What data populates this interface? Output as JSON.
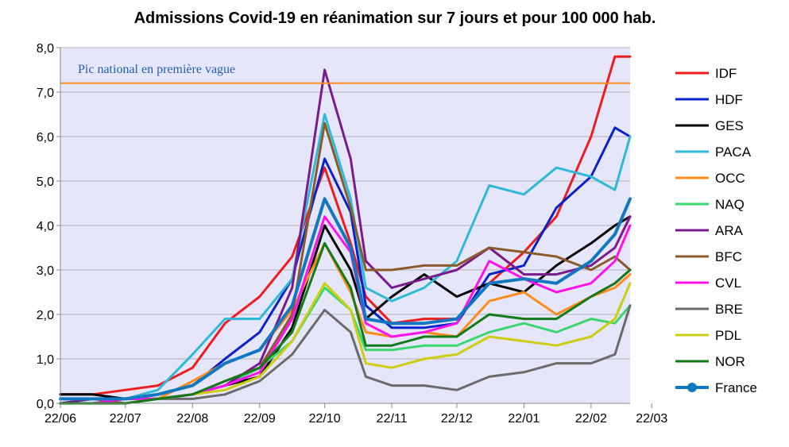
{
  "chart_data": {
    "type": "line",
    "title": "Admissions Covid-19 en réanimation sur 7 jours et pour 100 000 hab.",
    "xlabel": "",
    "ylabel": "",
    "ylim": [
      0,
      8
    ],
    "yticks": [
      "0,0",
      "1,0",
      "2,0",
      "3,0",
      "4,0",
      "5,0",
      "6,0",
      "7,0",
      "8,0"
    ],
    "xlim": [
      "2020-06-22",
      "2021-03-12"
    ],
    "xticks": [
      "22/06",
      "22/07",
      "22/08",
      "22/09",
      "22/10",
      "22/11",
      "22/12",
      "22/01",
      "22/02",
      "22/03"
    ],
    "grid": "horizontal",
    "legend_position": "right",
    "plot_background": "#e6e6fa",
    "reference_line": {
      "label": "Pic national en première vague",
      "value": 7.2,
      "color": "#ff8c1a",
      "label_color": "#2a5db0"
    },
    "x_dates": [
      "2020-06-22",
      "2020-07-07",
      "2020-07-22",
      "2020-08-06",
      "2020-08-22",
      "2020-09-06",
      "2020-09-22",
      "2020-10-07",
      "2020-10-22",
      "2020-11-03",
      "2020-11-10",
      "2020-11-22",
      "2020-12-07",
      "2020-12-22",
      "2021-01-06",
      "2021-01-22",
      "2021-02-06",
      "2021-02-22",
      "2021-03-05",
      "2021-03-12"
    ],
    "series": [
      {
        "name": "IDF",
        "color": "#ee1c1c",
        "width": 3,
        "values": [
          0.2,
          0.2,
          0.3,
          0.4,
          0.8,
          1.8,
          2.4,
          3.3,
          5.3,
          3.6,
          2.4,
          1.8,
          1.9,
          1.9,
          2.7,
          3.4,
          4.2,
          6.0,
          7.8,
          7.8
        ]
      },
      {
        "name": "HDF",
        "color": "#0a22cc",
        "width": 3,
        "values": [
          0.1,
          0.1,
          0.1,
          0.2,
          0.4,
          1.0,
          1.6,
          2.8,
          5.5,
          4.3,
          2.2,
          1.7,
          1.7,
          1.8,
          2.9,
          3.1,
          4.4,
          5.1,
          6.2,
          6.0
        ]
      },
      {
        "name": "GES",
        "color": "#000000",
        "width": 3,
        "values": [
          0.2,
          0.2,
          0.1,
          0.1,
          0.2,
          0.4,
          0.6,
          1.7,
          4.0,
          3.0,
          1.9,
          2.4,
          2.9,
          2.4,
          2.7,
          2.5,
          3.1,
          3.6,
          4.0,
          4.2
        ]
      },
      {
        "name": "PACA",
        "color": "#2db9d8",
        "width": 3,
        "values": [
          0.1,
          0.1,
          0.1,
          0.3,
          1.1,
          1.9,
          1.9,
          2.8,
          6.5,
          4.6,
          2.6,
          2.3,
          2.6,
          3.2,
          4.9,
          4.7,
          5.3,
          5.1,
          4.8,
          6.0
        ]
      },
      {
        "name": "OCC",
        "color": "#ff8c1a",
        "width": 3,
        "values": [
          0.1,
          0.1,
          0.1,
          0.1,
          0.5,
          0.9,
          1.2,
          2.1,
          3.6,
          2.5,
          1.6,
          1.5,
          1.6,
          1.5,
          2.3,
          2.5,
          2.0,
          2.4,
          2.6,
          2.9
        ]
      },
      {
        "name": "NAQ",
        "color": "#3cd66e",
        "width": 3,
        "values": [
          0.0,
          0.0,
          0.1,
          0.1,
          0.2,
          0.4,
          0.8,
          1.4,
          2.6,
          2.1,
          1.2,
          1.2,
          1.3,
          1.3,
          1.6,
          1.8,
          1.6,
          1.9,
          1.8,
          2.2
        ]
      },
      {
        "name": "ARA",
        "color": "#7a1a8c",
        "width": 3,
        "values": [
          0.0,
          0.1,
          0.1,
          0.1,
          0.2,
          0.4,
          0.9,
          2.6,
          7.5,
          5.5,
          3.2,
          2.6,
          2.8,
          3.0,
          3.5,
          2.9,
          2.9,
          3.1,
          3.5,
          4.2
        ]
      },
      {
        "name": "BFC",
        "color": "#8b5a2b",
        "width": 3,
        "values": [
          0.1,
          0.1,
          0.0,
          0.1,
          0.2,
          0.5,
          0.8,
          2.0,
          6.3,
          4.4,
          3.0,
          3.0,
          3.1,
          3.1,
          3.5,
          3.4,
          3.3,
          3.0,
          3.3,
          3.0
        ]
      },
      {
        "name": "CVL",
        "color": "#ff10f0",
        "width": 3,
        "values": [
          0.0,
          0.0,
          0.1,
          0.1,
          0.2,
          0.4,
          0.7,
          1.9,
          4.2,
          3.4,
          1.8,
          1.5,
          1.6,
          1.8,
          3.2,
          2.8,
          2.5,
          2.7,
          3.2,
          4.0
        ]
      },
      {
        "name": "BRE",
        "color": "#6b6b6b",
        "width": 3,
        "values": [
          0.0,
          0.0,
          0.0,
          0.1,
          0.1,
          0.2,
          0.5,
          1.1,
          2.1,
          1.6,
          0.6,
          0.4,
          0.4,
          0.3,
          0.6,
          0.7,
          0.9,
          0.9,
          1.1,
          2.2
        ]
      },
      {
        "name": "PDL",
        "color": "#cccc10",
        "width": 3,
        "values": [
          0.0,
          0.0,
          0.0,
          0.1,
          0.2,
          0.3,
          0.6,
          1.4,
          2.7,
          2.1,
          0.9,
          0.8,
          1.0,
          1.1,
          1.5,
          1.4,
          1.3,
          1.5,
          1.9,
          2.7
        ]
      },
      {
        "name": "NOR",
        "color": "#127a18",
        "width": 3,
        "values": [
          0.0,
          0.0,
          0.0,
          0.1,
          0.2,
          0.5,
          0.8,
          1.6,
          3.6,
          2.6,
          1.3,
          1.3,
          1.5,
          1.5,
          2.0,
          1.9,
          1.9,
          2.4,
          2.7,
          3.0
        ]
      },
      {
        "name": "France",
        "color": "#1177c0",
        "width": 4,
        "marker": "circle",
        "values": [
          0.1,
          0.1,
          0.1,
          0.2,
          0.4,
          0.9,
          1.2,
          2.2,
          4.6,
          3.5,
          1.9,
          1.8,
          1.8,
          1.9,
          2.7,
          2.8,
          2.7,
          3.2,
          3.8,
          4.6
        ]
      }
    ]
  }
}
